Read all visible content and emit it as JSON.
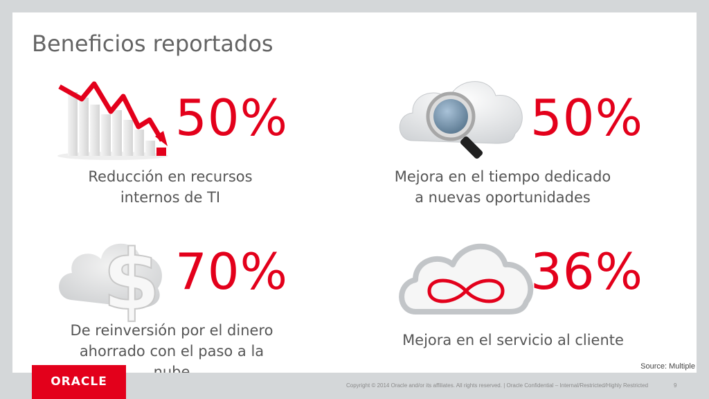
{
  "slide": {
    "title": "Beneficios reportados",
    "source": "Source: Multiple"
  },
  "stats": [
    {
      "value": "50%",
      "line1": "Reducción en recursos",
      "line2": "internos de TI",
      "icon": "declining-chart-icon"
    },
    {
      "value": "50%",
      "line1": "Mejora en el tiempo dedicado",
      "line2": "a nuevas oportunidades",
      "icon": "cloud-magnifier-icon"
    },
    {
      "value": "70%",
      "line1": "De reinversión por el dinero",
      "line2": "ahorrado con el paso a la nube",
      "icon": "cloud-dollar-icon"
    },
    {
      "value": "36%",
      "line1": "Mejora en el servicio al cliente",
      "line2": "",
      "icon": "cloud-infinity-icon"
    }
  ],
  "footer": {
    "logo": "ORACLE",
    "copyright": "Copyright © 2014 Oracle and/or its affiliates. All rights reserved.  |  Oracle Confidential – Internal/Restricted/Highly Restricted",
    "page": "9"
  },
  "colors": {
    "accent": "#e3001b",
    "text": "#555555",
    "background": "#d4d7d9"
  }
}
